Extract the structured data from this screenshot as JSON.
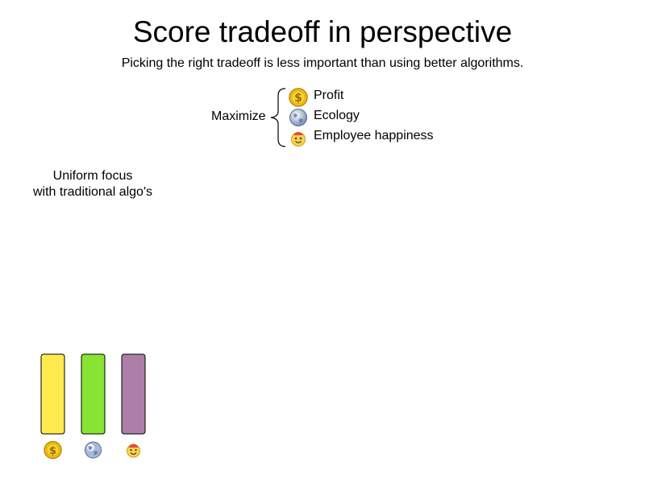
{
  "header": {
    "title": "Score tradeoff in perspective",
    "subtitle": "Picking the right tradeoff is less important than using better algorithms."
  },
  "objectives": {
    "label": "Maximize",
    "items": [
      {
        "label": "Profit",
        "icon": "dollar-coin-icon"
      },
      {
        "label": "Ecology",
        "icon": "globe-icon"
      },
      {
        "label": "Employee happiness",
        "icon": "smiley-icon"
      }
    ]
  },
  "chart_data": {
    "type": "bar",
    "title": "Uniform focus\nwith traditional algo's",
    "categories": [
      "Profit",
      "Ecology",
      "Employee happiness"
    ],
    "category_icons": [
      "dollar-coin-icon",
      "globe-icon",
      "smiley-icon"
    ],
    "values": [
      1,
      1,
      1
    ],
    "colors": [
      "#ffea50",
      "#88e432",
      "#ad7fa8"
    ],
    "xlabel": "",
    "ylabel": "",
    "ylim": [
      0,
      1
    ],
    "grid": false
  }
}
